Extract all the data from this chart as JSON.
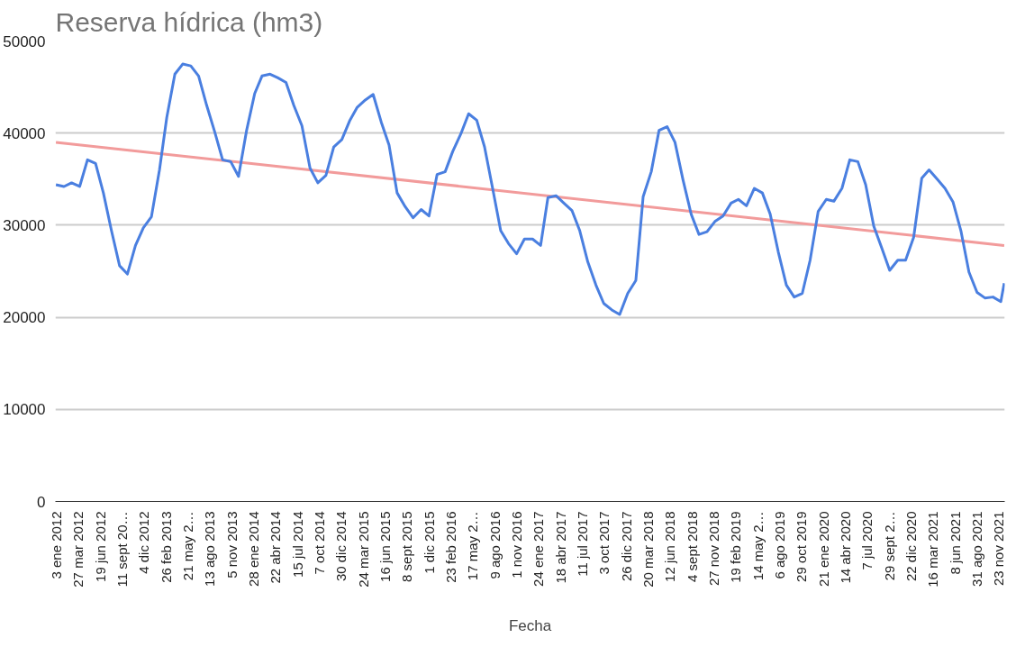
{
  "chart_data": {
    "type": "line",
    "title": "Reserva hídrica (hm3)",
    "xlabel": "Fecha",
    "xlim": [
      "2011-12-30",
      "2021-12-16"
    ],
    "ylim": [
      0,
      50000
    ],
    "yticks": [
      0,
      10000,
      20000,
      30000,
      40000,
      50000
    ],
    "xticks": [
      {
        "value": "2012-01-03",
        "label": "3 ene 2012"
      },
      {
        "value": "2012-03-27",
        "label": "27 mar 2012"
      },
      {
        "value": "2012-06-19",
        "label": "19 jun 2012"
      },
      {
        "value": "2012-09-11",
        "label": "11 sept 20…"
      },
      {
        "value": "2012-12-04",
        "label": "4 dic 2012"
      },
      {
        "value": "2013-02-26",
        "label": "26 feb 2013"
      },
      {
        "value": "2013-05-21",
        "label": "21 may 2…"
      },
      {
        "value": "2013-08-13",
        "label": "13 ago 2013"
      },
      {
        "value": "2013-11-05",
        "label": "5 nov 2013"
      },
      {
        "value": "2014-01-28",
        "label": "28 ene 2014"
      },
      {
        "value": "2014-04-22",
        "label": "22 abr 2014"
      },
      {
        "value": "2014-07-15",
        "label": "15 jul 2014"
      },
      {
        "value": "2014-10-07",
        "label": "7 oct 2014"
      },
      {
        "value": "2014-12-30",
        "label": "30 dic 2014"
      },
      {
        "value": "2015-03-24",
        "label": "24 mar 2015"
      },
      {
        "value": "2015-06-16",
        "label": "16 jun 2015"
      },
      {
        "value": "2015-09-08",
        "label": "8 sept 2015"
      },
      {
        "value": "2015-12-01",
        "label": "1 dic 2015"
      },
      {
        "value": "2016-02-23",
        "label": "23 feb 2016"
      },
      {
        "value": "2016-05-17",
        "label": "17 may 2…"
      },
      {
        "value": "2016-08-09",
        "label": "9 ago 2016"
      },
      {
        "value": "2016-11-01",
        "label": "1 nov 2016"
      },
      {
        "value": "2017-01-24",
        "label": "24 ene 2017"
      },
      {
        "value": "2017-04-18",
        "label": "18 abr 2017"
      },
      {
        "value": "2017-07-11",
        "label": "11 jul 2017"
      },
      {
        "value": "2017-10-03",
        "label": "3 oct 2017"
      },
      {
        "value": "2017-12-26",
        "label": "26 dic 2017"
      },
      {
        "value": "2018-03-20",
        "label": "20 mar 2018"
      },
      {
        "value": "2018-06-12",
        "label": "12 jun 2018"
      },
      {
        "value": "2018-09-04",
        "label": "4 sept 2018"
      },
      {
        "value": "2018-11-27",
        "label": "27 nov 2018"
      },
      {
        "value": "2019-02-19",
        "label": "19 feb 2019"
      },
      {
        "value": "2019-05-14",
        "label": "14 may 2…"
      },
      {
        "value": "2019-08-06",
        "label": "6 ago 2019"
      },
      {
        "value": "2019-10-29",
        "label": "29 oct 2019"
      },
      {
        "value": "2020-01-21",
        "label": "21 ene 2020"
      },
      {
        "value": "2020-04-14",
        "label": "14 abr 2020"
      },
      {
        "value": "2020-07-07",
        "label": "7 jul 2020"
      },
      {
        "value": "2020-09-29",
        "label": "29 sept 2…"
      },
      {
        "value": "2020-12-22",
        "label": "22 dic 2020"
      },
      {
        "value": "2021-03-16",
        "label": "16 mar 2021"
      },
      {
        "value": "2021-06-08",
        "label": "8 jun 2021"
      },
      {
        "value": "2021-08-31",
        "label": "31 ago 2021"
      },
      {
        "value": "2021-11-23",
        "label": "23 nov 2021"
      }
    ],
    "grid": "y",
    "line_style": "solid",
    "x": [
      "2012-01",
      "2012-02",
      "2012-03",
      "2012-04",
      "2012-05",
      "2012-06",
      "2012-07",
      "2012-08",
      "2012-09",
      "2012-10",
      "2012-11",
      "2012-12",
      "2013-01",
      "2013-02",
      "2013-03",
      "2013-04",
      "2013-05",
      "2013-06",
      "2013-07",
      "2013-08",
      "2013-09",
      "2013-10",
      "2013-11",
      "2013-12",
      "2014-01",
      "2014-02",
      "2014-03",
      "2014-04",
      "2014-05",
      "2014-06",
      "2014-07",
      "2014-08",
      "2014-09",
      "2014-10",
      "2014-11",
      "2014-12",
      "2015-01",
      "2015-02",
      "2015-03",
      "2015-04",
      "2015-05",
      "2015-06",
      "2015-07",
      "2015-08",
      "2015-09",
      "2015-10",
      "2015-11",
      "2015-12",
      "2016-01",
      "2016-02",
      "2016-03",
      "2016-04",
      "2016-05",
      "2016-06",
      "2016-07",
      "2016-08",
      "2016-09",
      "2016-10",
      "2016-11",
      "2016-12",
      "2017-01",
      "2017-02",
      "2017-03",
      "2017-04",
      "2017-05",
      "2017-06",
      "2017-07",
      "2017-08",
      "2017-09",
      "2017-10",
      "2017-11",
      "2017-12",
      "2018-01",
      "2018-02",
      "2018-03",
      "2018-04",
      "2018-05",
      "2018-06",
      "2018-07",
      "2018-08",
      "2018-09",
      "2018-10",
      "2018-11",
      "2018-12",
      "2019-01",
      "2019-02",
      "2019-03",
      "2019-04",
      "2019-05",
      "2019-06",
      "2019-07",
      "2019-08",
      "2019-09",
      "2019-10",
      "2019-11",
      "2019-12",
      "2020-01",
      "2020-02",
      "2020-03",
      "2020-04",
      "2020-05",
      "2020-06",
      "2020-07",
      "2020-08",
      "2020-09",
      "2020-10",
      "2020-11",
      "2020-12",
      "2021-01",
      "2021-02",
      "2021-03",
      "2021-04",
      "2021-05",
      "2021-06",
      "2021-07",
      "2021-08",
      "2021-09",
      "2021-10",
      "2021-11",
      "2021-12",
      "2021-12-14"
    ],
    "series": [
      {
        "color": "#4a7fe0",
        "values": [
          34400,
          34200,
          34600,
          34200,
          37100,
          36700,
          33500,
          29400,
          25600,
          24700,
          27800,
          29700,
          30900,
          36000,
          41700,
          46400,
          47500,
          47300,
          46200,
          43000,
          40100,
          37100,
          36900,
          35300,
          40300,
          44300,
          46200,
          46400,
          46000,
          45500,
          43000,
          40800,
          36200,
          34600,
          35400,
          38500,
          39300,
          41400,
          42800,
          43600,
          44200,
          41200,
          38700,
          33500,
          32000,
          30800,
          31700,
          31000,
          35500,
          35800,
          38000,
          39900,
          42100,
          41400,
          38500,
          34000,
          29400,
          28000,
          26900,
          28500,
          28500,
          27800,
          33000,
          33200,
          32400,
          31600,
          29400,
          26000,
          23500,
          21500,
          20800,
          20300,
          22600,
          24000,
          33100,
          35800,
          40300,
          40700,
          39000,
          34900,
          31200,
          29000,
          29300,
          30400,
          31000,
          32400,
          32800,
          32100,
          34000,
          33500,
          31200,
          27100,
          23500,
          22200,
          22600,
          26200,
          31500,
          32800,
          32600,
          34000,
          37100,
          36900,
          34400,
          29900,
          27500,
          25100,
          26200,
          26200,
          28700,
          35100,
          36000,
          35000,
          34000,
          32500,
          29400,
          24900,
          22700,
          22100,
          22200,
          21700,
          23700
        ]
      },
      {
        "type": "line",
        "color": "#f29b9b",
        "x": [
          "2012-01",
          "2021-12-14"
        ],
        "values": [
          39000,
          27800
        ]
      }
    ]
  }
}
